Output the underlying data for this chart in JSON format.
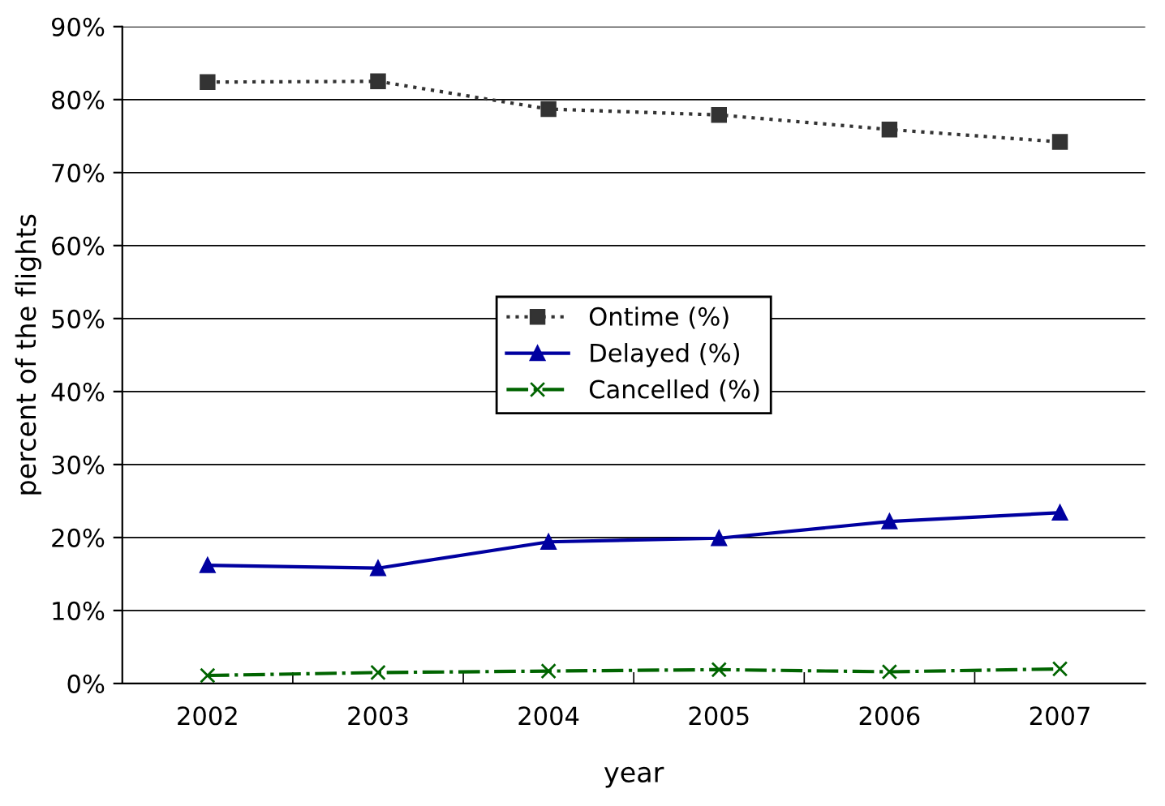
{
  "chart_data": {
    "type": "line",
    "xlabel": "year",
    "ylabel": "percent of the flights",
    "categories": [
      "2002",
      "2003",
      "2004",
      "2005",
      "2006",
      "2007"
    ],
    "series": [
      {
        "name": "Ontime (%)",
        "color": "#333333",
        "marker": "square",
        "line_style": "dotted",
        "values": [
          82.4,
          82.5,
          78.7,
          77.9,
          75.9,
          74.2
        ]
      },
      {
        "name": "Delayed (%)",
        "color": "#0000a0",
        "marker": "triangle",
        "line_style": "solid",
        "values": [
          16.2,
          15.8,
          19.4,
          19.9,
          22.2,
          23.4
        ]
      },
      {
        "name": "Cancelled (%)",
        "color": "#006400",
        "marker": "cross",
        "line_style": "dashdot",
        "values": [
          1.1,
          1.5,
          1.7,
          1.9,
          1.6,
          2.0
        ]
      }
    ],
    "ylim": [
      0,
      90
    ],
    "yticks": [
      {
        "value": 0,
        "label": "0%"
      },
      {
        "value": 10,
        "label": "10%"
      },
      {
        "value": 20,
        "label": "20%"
      },
      {
        "value": 30,
        "label": "30%"
      },
      {
        "value": 40,
        "label": "40%"
      },
      {
        "value": 50,
        "label": "50%"
      },
      {
        "value": 60,
        "label": "60%"
      },
      {
        "value": 70,
        "label": "70%"
      },
      {
        "value": 80,
        "label": "80%"
      },
      {
        "value": 90,
        "label": "90%"
      }
    ],
    "grid": "y",
    "legend": "center"
  }
}
